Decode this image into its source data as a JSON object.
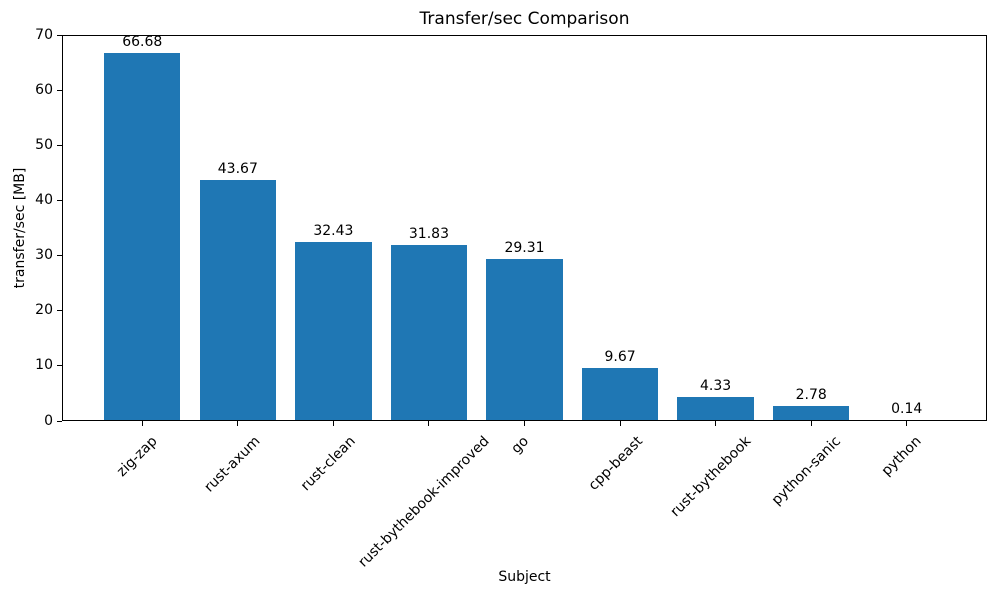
{
  "chart_data": {
    "type": "bar",
    "title": "Transfer/sec Comparison",
    "xlabel": "Subject",
    "ylabel": "transfer/sec [MB]",
    "categories": [
      "zig-zap",
      "rust-axum",
      "rust-clean",
      "rust-bythebook-improved",
      "go",
      "cpp-beast",
      "rust-bythebook",
      "python-sanic",
      "python"
    ],
    "values": [
      66.68,
      43.67,
      32.43,
      31.83,
      29.31,
      9.67,
      4.33,
      2.78,
      0.14
    ],
    "value_labels": [
      "66.68",
      "43.67",
      "32.43",
      "31.83",
      "29.31",
      "9.67",
      "4.33",
      "2.78",
      "0.14"
    ],
    "ylim": [
      0,
      70
    ],
    "yticks": [
      0,
      10,
      20,
      30,
      40,
      50,
      60,
      70
    ],
    "bar_color": "#1f77b4",
    "grid": false,
    "legend": null
  }
}
